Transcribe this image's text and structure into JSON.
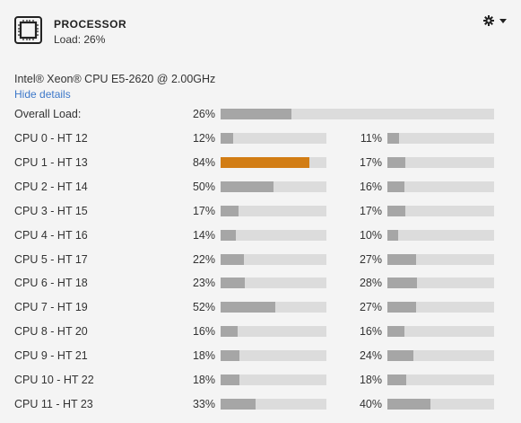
{
  "header": {
    "title": "PROCESSOR",
    "load_text": "Load: 26%"
  },
  "cpu_model": "Intel® Xeon® CPU E5-2620 @ 2.00GHz",
  "hide_details_label": "Hide details",
  "overall": {
    "label": "Overall Load:",
    "value": 26,
    "value_text": "26%"
  },
  "cores": [
    {
      "label": "CPU 0 - HT 12",
      "a": 12,
      "a_text": "12%",
      "b": 11,
      "b_text": "11%"
    },
    {
      "label": "CPU 1 - HT 13",
      "a": 84,
      "a_text": "84%",
      "b": 17,
      "b_text": "17%"
    },
    {
      "label": "CPU 2 - HT 14",
      "a": 50,
      "a_text": "50%",
      "b": 16,
      "b_text": "16%"
    },
    {
      "label": "CPU 3 - HT 15",
      "a": 17,
      "a_text": "17%",
      "b": 17,
      "b_text": "17%"
    },
    {
      "label": "CPU 4 - HT 16",
      "a": 14,
      "a_text": "14%",
      "b": 10,
      "b_text": "10%"
    },
    {
      "label": "CPU 5 - HT 17",
      "a": 22,
      "a_text": "22%",
      "b": 27,
      "b_text": "27%"
    },
    {
      "label": "CPU 6 - HT 18",
      "a": 23,
      "a_text": "23%",
      "b": 28,
      "b_text": "28%"
    },
    {
      "label": "CPU 7 - HT 19",
      "a": 52,
      "a_text": "52%",
      "b": 27,
      "b_text": "27%"
    },
    {
      "label": "CPU 8 - HT 20",
      "a": 16,
      "a_text": "16%",
      "b": 16,
      "b_text": "16%"
    },
    {
      "label": "CPU 9 - HT 21",
      "a": 18,
      "a_text": "18%",
      "b": 24,
      "b_text": "24%"
    },
    {
      "label": "CPU 10 - HT 22",
      "a": 18,
      "a_text": "18%",
      "b": 18,
      "b_text": "18%"
    },
    {
      "label": "CPU 11 - HT 23",
      "a": 33,
      "a_text": "33%",
      "b": 40,
      "b_text": "40%"
    }
  ],
  "colors": {
    "bar_fill": "#a6a6a6",
    "bar_track": "#dcdcdc",
    "bar_high": "#d27d14",
    "link": "#3d78c9"
  },
  "icons": {
    "processor": "processor-chip-icon",
    "settings": "gear-icon",
    "menu": "caret-down-icon"
  }
}
